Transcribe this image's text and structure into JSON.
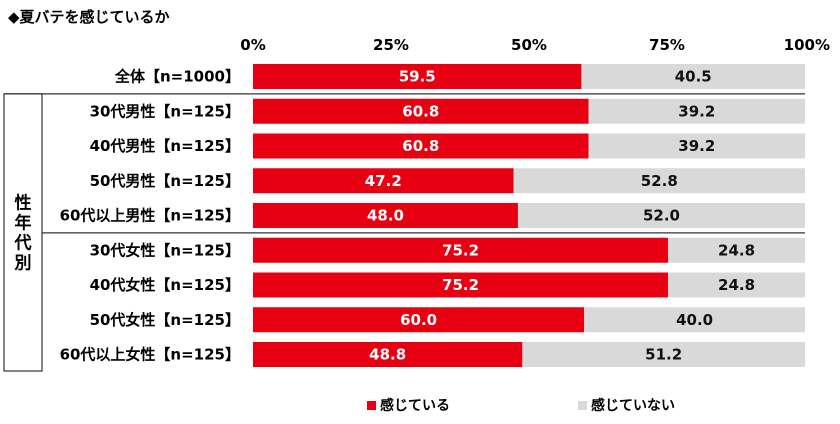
{
  "chart_data": {
    "type": "bar",
    "orientation": "horizontal",
    "stacked": true,
    "title": "◆夏バテを感じているか",
    "xlim": [
      0,
      100
    ],
    "ticks": [
      "0%",
      "25%",
      "50%",
      "75%",
      "100%"
    ],
    "categories": [
      "全体【n=1000】",
      "30代男性【n=125】",
      "40代男性【n=125】",
      "50代男性【n=125】",
      "60代以上男性【n=125】",
      "30代女性【n=125】",
      "40代女性【n=125】",
      "50代女性【n=125】",
      "60代以上女性【n=125】"
    ],
    "group_label": "性年代別",
    "series": [
      {
        "name": "感じている",
        "color": "#e60012",
        "values": [
          59.5,
          60.8,
          60.8,
          47.2,
          48.0,
          75.2,
          75.2,
          60.0,
          48.8
        ],
        "labels": [
          "59.5",
          "60.8",
          "60.8",
          "47.2",
          "48.0",
          "75.2",
          "75.2",
          "60.0",
          "48.8"
        ]
      },
      {
        "name": "感じていない",
        "color": "#d9d9d9",
        "values": [
          40.5,
          39.2,
          39.2,
          52.8,
          52.0,
          24.8,
          24.8,
          40.0,
          51.2
        ],
        "labels": [
          "40.5",
          "39.2",
          "39.2",
          "52.8",
          "52.0",
          "24.8",
          "24.8",
          "40.0",
          "51.2"
        ]
      }
    ],
    "legend_position": "bottom"
  }
}
